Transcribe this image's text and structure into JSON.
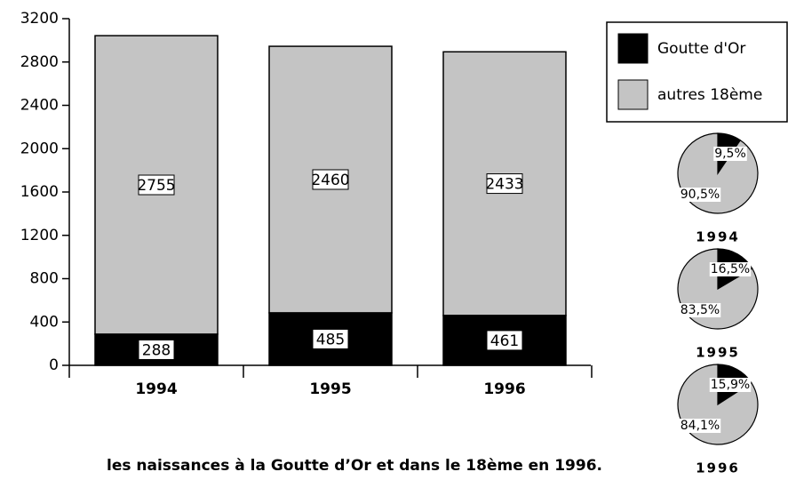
{
  "chart_data": [
    {
      "type": "bar",
      "stacked": true,
      "caption": "les naissances à la Goutte d’Or et dans le 18ème en 1996.",
      "categories": [
        "1994",
        "1995",
        "1996"
      ],
      "series": [
        {
          "name": "Goutte d'Or",
          "color": "#000000",
          "values": [
            288,
            485,
            461
          ]
        },
        {
          "name": "autres 18ème",
          "color": "#c4c4c4",
          "values": [
            2755,
            2460,
            2433
          ]
        }
      ],
      "ylim": [
        0,
        3200
      ],
      "yticks": [
        0,
        400,
        800,
        1200,
        1600,
        2000,
        2400,
        2800,
        3200
      ]
    },
    {
      "type": "pie",
      "title": "1994",
      "values": [
        9.5,
        90.5
      ],
      "value_labels": [
        "9,5%",
        "90,5%"
      ],
      "colors": [
        "#000000",
        "#c4c4c4"
      ]
    },
    {
      "type": "pie",
      "title": "1995",
      "values": [
        16.5,
        83.5
      ],
      "value_labels": [
        "16,5%",
        "83,5%"
      ],
      "colors": [
        "#000000",
        "#c4c4c4"
      ]
    },
    {
      "type": "pie",
      "title": "1996",
      "values": [
        15.9,
        84.1
      ],
      "value_labels": [
        "15,9%",
        "84,1%"
      ],
      "colors": [
        "#000000",
        "#c4c4c4"
      ]
    }
  ]
}
